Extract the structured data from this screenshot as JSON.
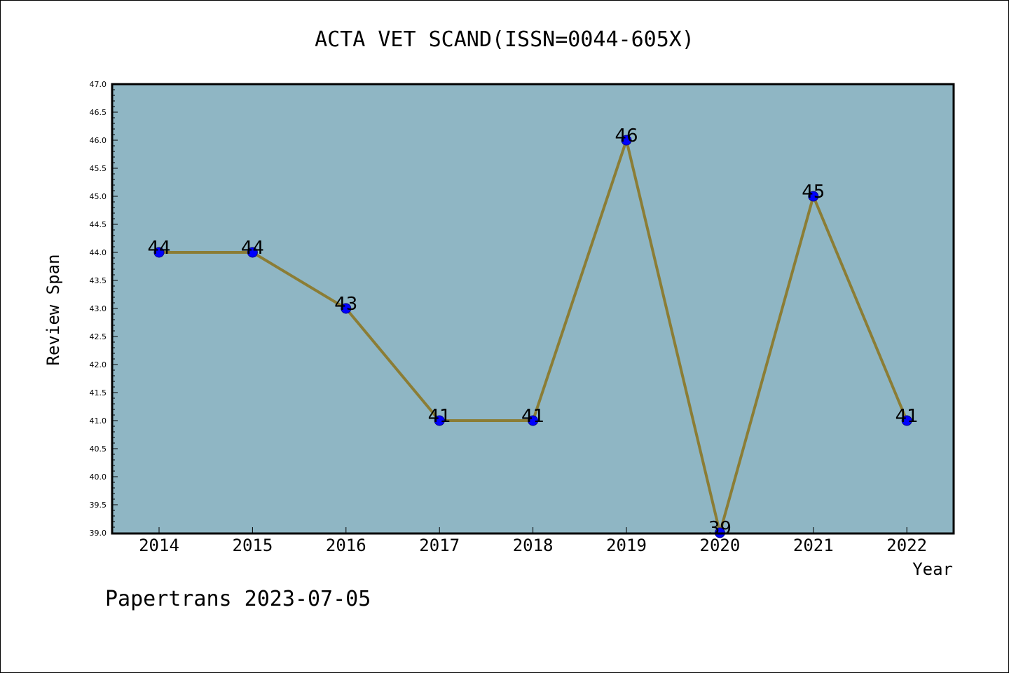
{
  "chart_data": {
    "type": "line",
    "title": "ACTA VET SCAND(ISSN=0044-605X)",
    "xlabel": "Year",
    "ylabel": "Review Span",
    "categories": [
      "2014",
      "2015",
      "2016",
      "2017",
      "2018",
      "2019",
      "2020",
      "2021",
      "2022"
    ],
    "values": [
      44,
      44,
      43,
      41,
      41,
      46,
      39,
      45,
      41
    ],
    "data_labels": [
      "44",
      "44",
      "43",
      "41",
      "41",
      "46",
      "39",
      "45",
      "41"
    ],
    "ylim": [
      39.0,
      47.0
    ],
    "yticks": [
      "39.0",
      "39.5",
      "40.0",
      "40.5",
      "41.0",
      "41.5",
      "42.0",
      "42.5",
      "43.0",
      "43.5",
      "44.0",
      "44.5",
      "45.0",
      "45.5",
      "46.0",
      "46.5",
      "47.0"
    ],
    "grid": false,
    "legend": "none",
    "colors": {
      "plot_background": "#8fb6c4",
      "line": "#8b7d35",
      "marker": "#0000ff"
    }
  },
  "footer": "Papertrans 2023-07-05"
}
